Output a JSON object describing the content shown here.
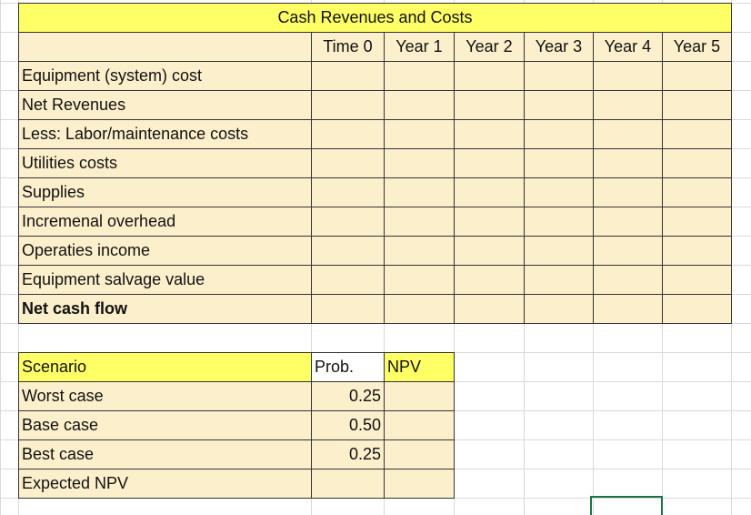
{
  "title": "Cash Revenues and Costs",
  "cash_table": {
    "columns": [
      "Time 0",
      "Year 1",
      "Year 2",
      "Year 3",
      "Year 4",
      "Year 5"
    ],
    "rows": [
      "Equipment (system) cost",
      "Net Revenues",
      "Less: Labor/maintenance costs",
      "Utilities costs",
      "Supplies",
      "Incremenal overhead",
      "Operaties income",
      "Equipment salvage value",
      "Net cash flow"
    ]
  },
  "scenario_table": {
    "header": [
      "Scenario",
      "Prob.",
      "NPV"
    ],
    "rows": [
      {
        "label": "Worst case",
        "prob": "0.25"
      },
      {
        "label": "Base case",
        "prob": "0.50"
      },
      {
        "label": "Best case",
        "prob": "0.25"
      },
      {
        "label": "Expected NPV"
      }
    ]
  }
}
